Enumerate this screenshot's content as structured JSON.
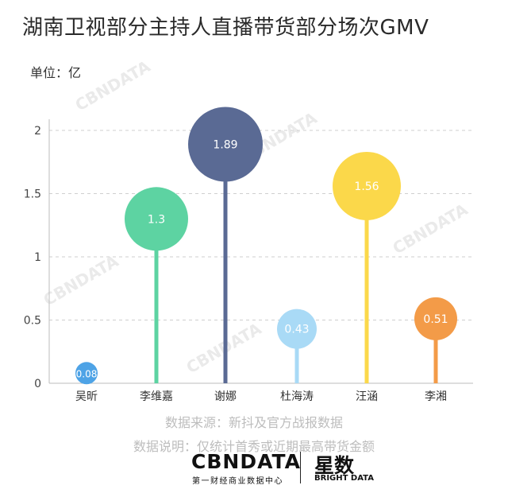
{
  "title": "湖南卫视部分主持人直播带货部分场次GMV",
  "unit_label": "单位：亿",
  "source_line": "数据来源：新抖及官方战报数据",
  "note_line": "数据说明：仅统计首秀或近期最高带货金额",
  "footer": {
    "cbn_logo": "CBNDATA",
    "cbn_sub": "第一财经商业数据中心",
    "xs_logo": "星数",
    "xs_sub": "BRIGHT DATA"
  },
  "watermark_text": "CBNDATA",
  "chart_data": {
    "type": "lollipop-bubble",
    "title": "湖南卫视部分主持人直播带货部分场次GMV",
    "ylabel": "单位：亿",
    "categories": [
      "吴昕",
      "李维嘉",
      "谢娜",
      "杜海涛",
      "汪涵",
      "李湘"
    ],
    "values": [
      0.08,
      1.3,
      1.89,
      0.43,
      1.56,
      0.51
    ],
    "value_labels": [
      "0.08",
      "1.3",
      "1.89",
      "0.43",
      "1.56",
      "0.51"
    ],
    "colors": [
      "#4ea3e6",
      "#5dd3a2",
      "#5a6a94",
      "#a9daf6",
      "#fbd84a",
      "#f39b48"
    ],
    "ylim": [
      0,
      2.2
    ],
    "yticks": [
      0,
      0.5,
      1,
      1.5,
      2
    ],
    "ytick_labels": [
      "0",
      "0.5",
      "1",
      "1.5",
      "2"
    ],
    "grid": true
  }
}
